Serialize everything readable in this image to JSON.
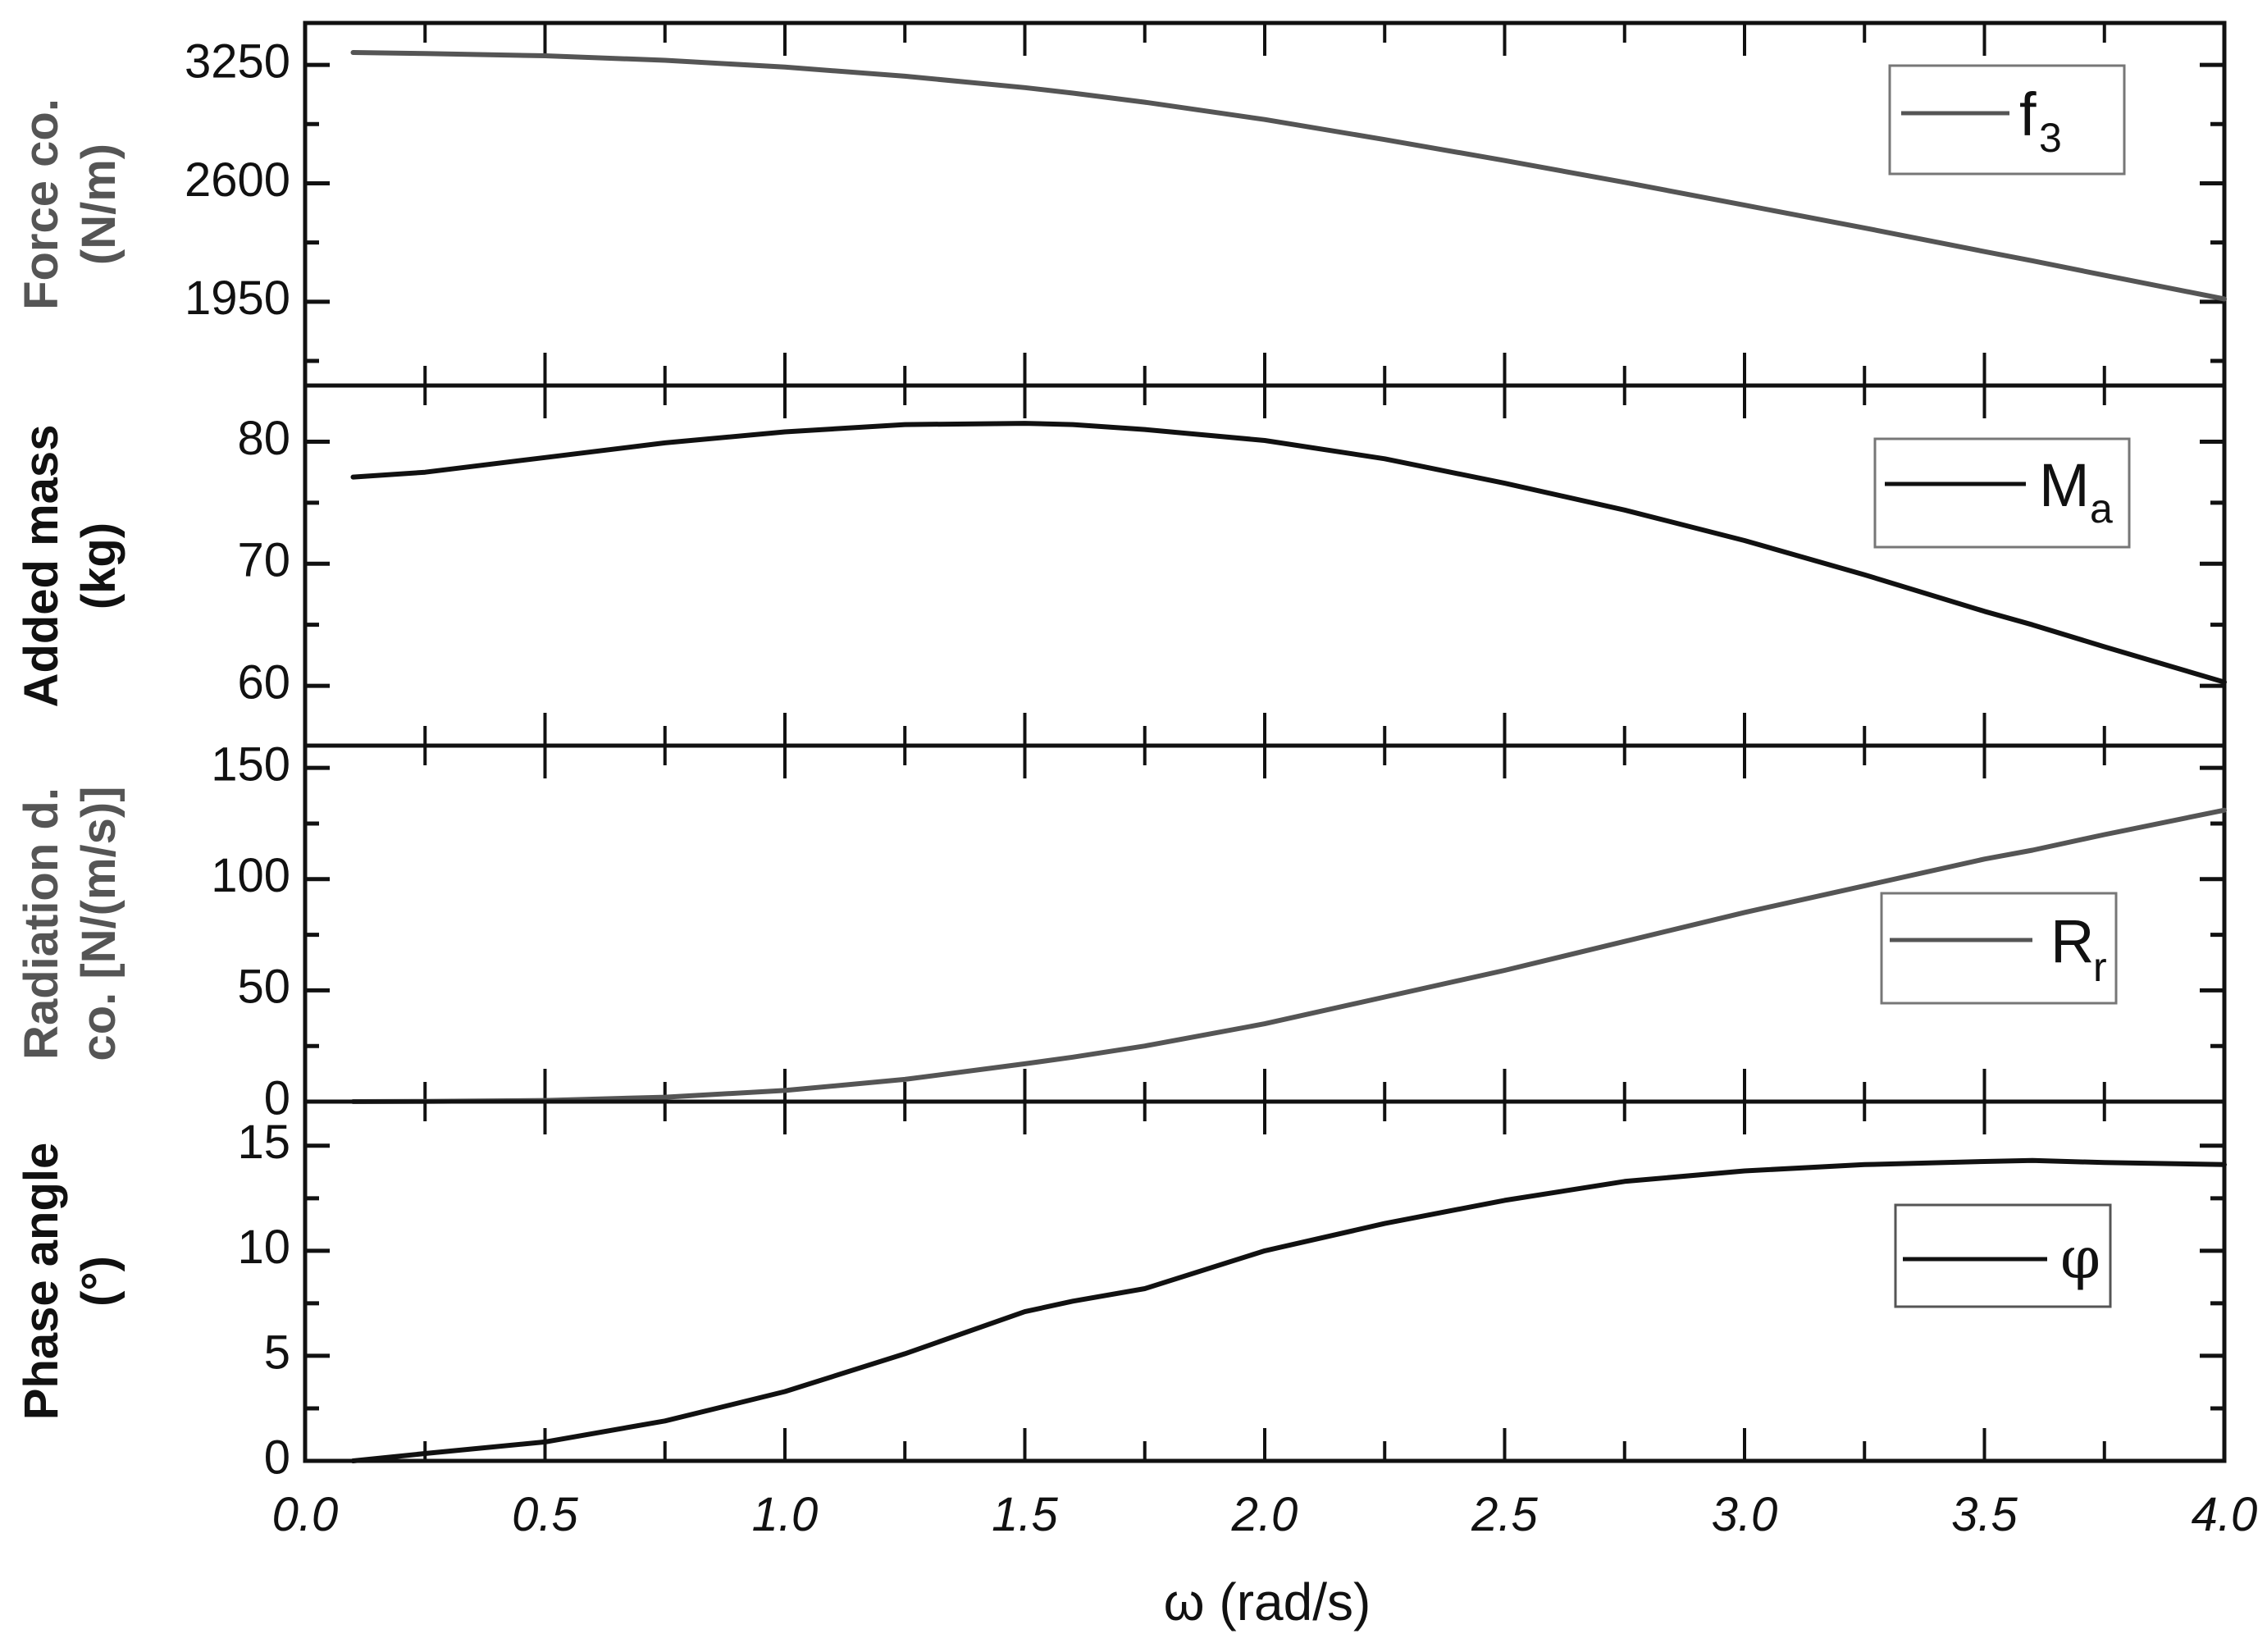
{
  "chart_data": {
    "type": "line",
    "layout": "4 vertically stacked panels sharing x-axis",
    "xlabel": "ω (rad/s)",
    "xlim": [
      0.0,
      4.0
    ],
    "xticks": [
      "0.0",
      "0.5",
      "1.0",
      "1.5",
      "2.0",
      "2.5",
      "3.0",
      "3.5",
      "4.0"
    ],
    "grid": false,
    "x": [
      0.1,
      0.25,
      0.5,
      0.75,
      1.0,
      1.25,
      1.5,
      1.6,
      1.75,
      2.0,
      2.25,
      2.5,
      2.75,
      3.0,
      3.25,
      3.5,
      3.6,
      3.75,
      4.0
    ],
    "panels": [
      {
        "id": "force",
        "ylabel_line1": "Force co.",
        "ylabel_line2": "(N/m)",
        "ylabel_color": "#555555",
        "ylim": [
          1490,
          3480
        ],
        "yticks": [
          1950,
          2600,
          3250
        ],
        "ytick_labels": [
          "1950",
          "2600",
          "3250"
        ],
        "legend": {
          "symbol": "f",
          "subscript": "3",
          "position": "upper right"
        },
        "line_color": "#555555",
        "series": {
          "name": "f3",
          "values": [
            3318,
            3312,
            3300,
            3275,
            3238,
            3188,
            3125,
            3095,
            3045,
            2950,
            2840,
            2725,
            2605,
            2480,
            2355,
            2225,
            2175,
            2095,
            1965
          ]
        }
      },
      {
        "id": "added-mass",
        "ylabel_line1": "Added mass",
        "ylabel_line2": "(kg)",
        "ylabel_color": "#111111",
        "ylim": [
          55.1,
          84.6
        ],
        "yticks": [
          60,
          70,
          80
        ],
        "ytick_labels": [
          "60",
          "70",
          "80"
        ],
        "legend": {
          "symbol": "M",
          "subscript": "a",
          "position": "upper right"
        },
        "line_color": "#111111",
        "series": {
          "name": "Ma",
          "values": [
            77.1,
            77.5,
            78.7,
            79.9,
            80.8,
            81.4,
            81.5,
            81.4,
            81.0,
            80.1,
            78.6,
            76.6,
            74.4,
            71.9,
            69.1,
            66.1,
            65.0,
            63.2,
            60.3
          ]
        }
      },
      {
        "id": "radiation",
        "ylabel_line1": "Radiation d.",
        "ylabel_line2": "co. [N/(m/s)]",
        "ylabel_color": "#555555",
        "ylim": [
          0,
          160
        ],
        "yticks": [
          0,
          50,
          100,
          150
        ],
        "ytick_labels": [
          "0",
          "50",
          "100",
          "150"
        ],
        "legend": {
          "symbol": "R",
          "subscript": "r",
          "position": "center right"
        },
        "line_color": "#555555",
        "series": {
          "name": "Rr",
          "values": [
            0,
            0.1,
            0.5,
            2,
            5,
            10,
            17,
            20,
            25,
            35,
            47,
            59,
            72,
            85,
            97,
            109,
            113,
            120,
            131
          ]
        }
      },
      {
        "id": "phase",
        "ylabel_line1": "Phase angle",
        "ylabel_line2": "(°)",
        "ylabel_color": "#111111",
        "ylim": [
          0,
          17.1
        ],
        "yticks": [
          0,
          5,
          10,
          15
        ],
        "ytick_labels": [
          "0",
          "5",
          "10",
          "15"
        ],
        "legend": {
          "symbol": "φ",
          "subscript": "",
          "position": "center right"
        },
        "line_color": "#111111",
        "series": {
          "name": "φ",
          "values": [
            0,
            0.35,
            0.9,
            1.9,
            3.3,
            5.1,
            7.1,
            7.6,
            8.2,
            10.0,
            11.3,
            12.4,
            13.3,
            13.8,
            14.1,
            14.25,
            14.3,
            14.2,
            14.1
          ]
        }
      }
    ]
  },
  "labels": {
    "xlabel": "ω (rad/s)",
    "force_y1": "Force co.",
    "force_y2": "(N/m)",
    "mass_y1": "Added mass",
    "mass_y2": "(kg)",
    "rad_y1": "Radiation d.",
    "rad_y2": "co. [N/(m/s)]",
    "phase_y1": "Phase angle",
    "phase_y2": "(°)",
    "legend_f": "f",
    "legend_f_sub": "3",
    "legend_m": "M",
    "legend_m_sub": "a",
    "legend_r": "R",
    "legend_r_sub": "r",
    "legend_phi": "φ"
  }
}
